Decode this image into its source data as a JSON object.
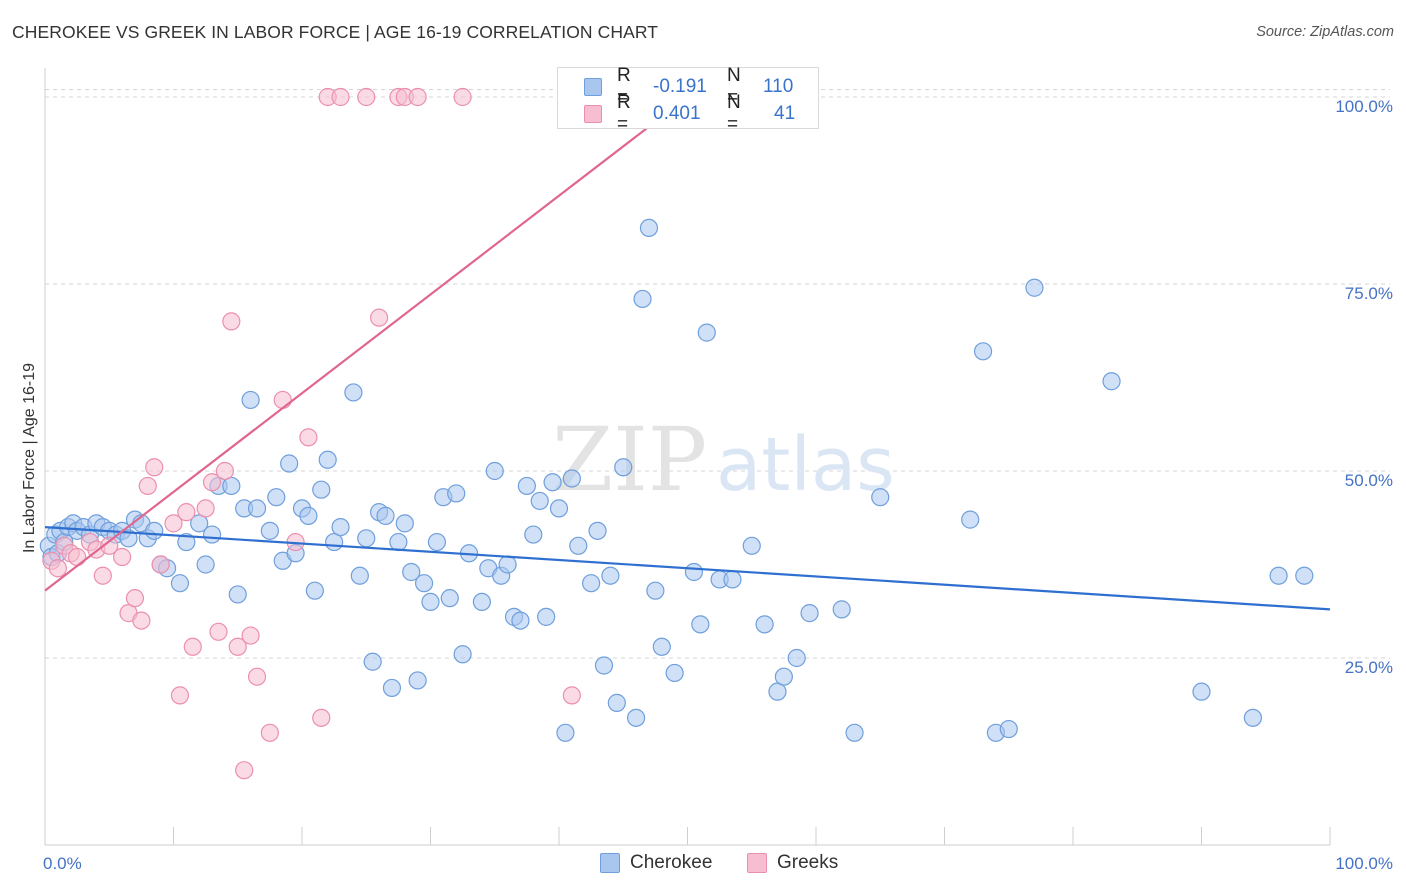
{
  "title": "CHEROKEE VS GREEK IN LABOR FORCE | AGE 16-19 CORRELATION CHART",
  "source": "Source: ZipAtlas.com",
  "watermark": {
    "zip": "ZIP",
    "atlas": "atlas"
  },
  "colors": {
    "cherokee_fill": "#a9c6ef",
    "cherokee_stroke": "#6f9fdc",
    "cherokee_line": "#2e6fd0",
    "greek_fill": "#f6bed0",
    "greek_stroke": "#ec8fae",
    "greek_line": "#e06690",
    "axis_label": "#4472C4",
    "grid": "#d6d6d6"
  },
  "stats": {
    "cherokee": {
      "r_label": "R = ",
      "r_value": "-0.191",
      "n_label": "N = ",
      "n_value": "110"
    },
    "greek": {
      "r_label": "R = ",
      "r_value": "0.401",
      "n_label": "N = ",
      "n_value": "41"
    }
  },
  "legend": {
    "cherokee": "Cherokee",
    "greeks": "Greeks"
  },
  "chart_data": {
    "type": "scatter",
    "title": "CHEROKEE VS GREEK IN LABOR FORCE | AGE 16-19 CORRELATION CHART",
    "xlabel": "",
    "ylabel": "In Labor Force | Age 16-19",
    "xlim": [
      0,
      100
    ],
    "ylim": [
      0,
      102
    ],
    "x_tick_labels": [
      "0.0%",
      "100.0%"
    ],
    "y_ticks": [
      25,
      50,
      75,
      100
    ],
    "y_tick_labels": [
      "25.0%",
      "50.0%",
      "75.0%",
      "100.0%"
    ],
    "grid": true,
    "legend_position": "bottom-center",
    "series": [
      {
        "name": "Cherokee",
        "r": -0.191,
        "n": 110,
        "trend": [
          [
            0,
            42.5
          ],
          [
            100,
            31.5
          ]
        ],
        "points": [
          [
            0.3,
            40
          ],
          [
            0.5,
            38.5
          ],
          [
            0.8,
            41.5
          ],
          [
            1.0,
            39
          ],
          [
            1.2,
            42
          ],
          [
            1.5,
            40.5
          ],
          [
            1.8,
            42.5
          ],
          [
            2.2,
            43
          ],
          [
            2.5,
            42
          ],
          [
            3.0,
            42.5
          ],
          [
            3.5,
            41.5
          ],
          [
            4.0,
            43
          ],
          [
            4.5,
            42.5
          ],
          [
            5.0,
            42
          ],
          [
            5.5,
            41.5
          ],
          [
            6.0,
            42
          ],
          [
            6.5,
            41
          ],
          [
            7.0,
            43.5
          ],
          [
            7.5,
            43
          ],
          [
            8.0,
            41
          ],
          [
            8.5,
            42
          ],
          [
            9.0,
            37.5
          ],
          [
            9.5,
            37
          ],
          [
            10.5,
            35
          ],
          [
            11.0,
            40.5
          ],
          [
            12.0,
            43
          ],
          [
            12.5,
            37.5
          ],
          [
            13.0,
            41.5
          ],
          [
            13.5,
            48
          ],
          [
            14.5,
            48
          ],
          [
            15.0,
            33.5
          ],
          [
            15.5,
            45
          ],
          [
            16.0,
            59.5
          ],
          [
            16.5,
            45
          ],
          [
            17.5,
            42
          ],
          [
            18.0,
            46.5
          ],
          [
            18.5,
            38
          ],
          [
            19.0,
            51
          ],
          [
            19.5,
            39
          ],
          [
            20.0,
            45
          ],
          [
            20.5,
            44
          ],
          [
            21.0,
            34
          ],
          [
            21.5,
            47.5
          ],
          [
            22.0,
            51.5
          ],
          [
            22.5,
            40.5
          ],
          [
            23.0,
            42.5
          ],
          [
            24.0,
            60.5
          ],
          [
            24.5,
            36
          ],
          [
            25.0,
            41
          ],
          [
            25.5,
            24.5
          ],
          [
            26.0,
            44.5
          ],
          [
            26.5,
            44
          ],
          [
            27.0,
            21
          ],
          [
            27.5,
            40.5
          ],
          [
            28.0,
            43
          ],
          [
            28.5,
            36.5
          ],
          [
            29.0,
            22
          ],
          [
            29.5,
            35
          ],
          [
            30.0,
            32.5
          ],
          [
            30.5,
            40.5
          ],
          [
            31.0,
            46.5
          ],
          [
            31.5,
            33
          ],
          [
            32.0,
            47
          ],
          [
            32.5,
            25.5
          ],
          [
            33.0,
            39
          ],
          [
            34.0,
            32.5
          ],
          [
            34.5,
            37
          ],
          [
            35.0,
            50
          ],
          [
            35.5,
            36
          ],
          [
            36.0,
            37.5
          ],
          [
            36.5,
            30.5
          ],
          [
            37.0,
            30
          ],
          [
            37.5,
            48
          ],
          [
            38.0,
            41.5
          ],
          [
            38.5,
            46
          ],
          [
            39.0,
            30.5
          ],
          [
            39.5,
            48.5
          ],
          [
            40.0,
            45
          ],
          [
            40.5,
            15
          ],
          [
            41.0,
            49
          ],
          [
            41.5,
            40
          ],
          [
            42.5,
            35
          ],
          [
            43.0,
            42
          ],
          [
            43.5,
            24
          ],
          [
            44.0,
            36
          ],
          [
            44.5,
            19
          ],
          [
            45.0,
            50.5
          ],
          [
            46.0,
            17
          ],
          [
            46.5,
            73
          ],
          [
            47.0,
            82.5
          ],
          [
            47.5,
            34
          ],
          [
            48.0,
            26.5
          ],
          [
            49.0,
            23
          ],
          [
            50.5,
            36.5
          ],
          [
            51.0,
            29.5
          ],
          [
            51.5,
            68.5
          ],
          [
            52.5,
            35.5
          ],
          [
            53.5,
            35.5
          ],
          [
            55.0,
            40
          ],
          [
            56.0,
            29.5
          ],
          [
            57.0,
            20.5
          ],
          [
            57.5,
            22.5
          ],
          [
            58.5,
            25
          ],
          [
            59.5,
            31
          ],
          [
            62.0,
            31.5
          ],
          [
            63.0,
            15
          ],
          [
            65.0,
            46.5
          ],
          [
            72.0,
            43.5
          ],
          [
            73.0,
            66
          ],
          [
            74.0,
            15
          ],
          [
            75.0,
            15.5
          ],
          [
            77.0,
            74.5
          ],
          [
            83.0,
            62
          ],
          [
            90.0,
            20.5
          ],
          [
            94.0,
            17
          ],
          [
            96.0,
            36
          ],
          [
            98.0,
            36
          ]
        ]
      },
      {
        "name": "Greeks",
        "r": 0.401,
        "n": 41,
        "trend": [
          [
            0,
            34
          ],
          [
            50,
            100
          ]
        ],
        "points": [
          [
            0.5,
            38
          ],
          [
            1.0,
            37
          ],
          [
            1.5,
            40
          ],
          [
            2.0,
            39
          ],
          [
            2.5,
            38.5
          ],
          [
            3.5,
            40.5
          ],
          [
            4.0,
            39.5
          ],
          [
            4.5,
            36
          ],
          [
            5.0,
            40
          ],
          [
            6.0,
            38.5
          ],
          [
            6.5,
            31
          ],
          [
            7.0,
            33
          ],
          [
            7.5,
            30
          ],
          [
            8.0,
            48
          ],
          [
            8.5,
            50.5
          ],
          [
            9.0,
            37.5
          ],
          [
            10.0,
            43
          ],
          [
            10.5,
            20
          ],
          [
            11.0,
            44.5
          ],
          [
            11.5,
            26.5
          ],
          [
            12.5,
            45
          ],
          [
            13.0,
            48.5
          ],
          [
            13.5,
            28.5
          ],
          [
            14.0,
            50
          ],
          [
            14.5,
            70
          ],
          [
            15.0,
            26.5
          ],
          [
            15.5,
            10
          ],
          [
            16.0,
            28
          ],
          [
            16.5,
            22.5
          ],
          [
            17.5,
            15
          ],
          [
            18.5,
            59.5
          ],
          [
            19.5,
            40.5
          ],
          [
            20.5,
            54.5
          ],
          [
            21.5,
            17
          ],
          [
            22.0,
            100
          ],
          [
            23.0,
            100
          ],
          [
            25.0,
            100
          ],
          [
            26.0,
            70.5
          ],
          [
            27.5,
            100
          ],
          [
            28.0,
            100
          ],
          [
            29.0,
            100
          ],
          [
            32.5,
            100
          ],
          [
            41.0,
            20
          ]
        ]
      }
    ]
  }
}
